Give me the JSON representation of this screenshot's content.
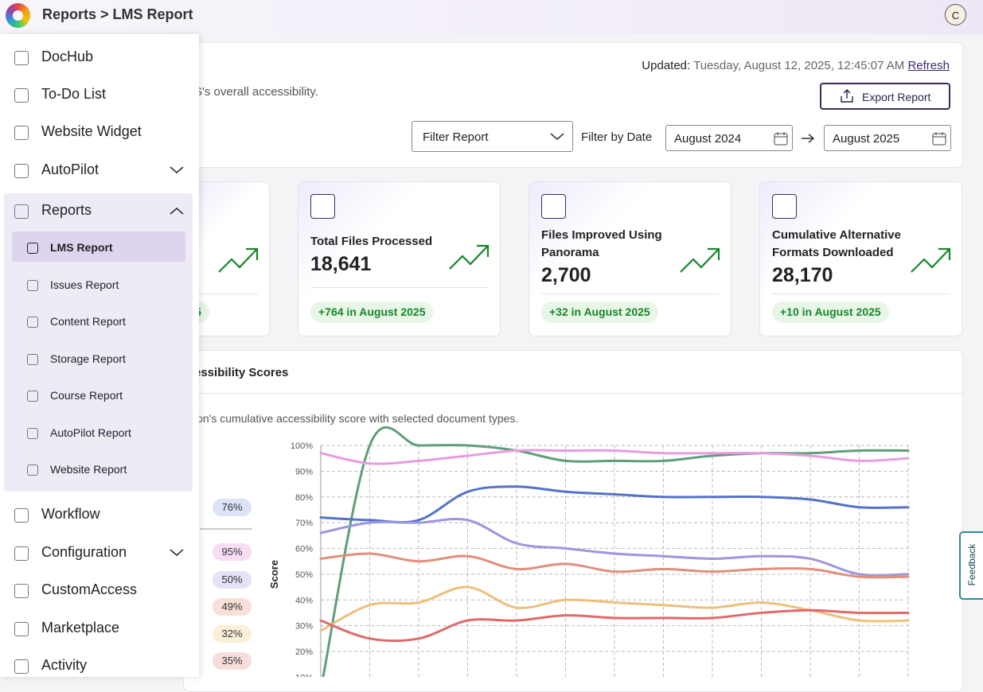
{
  "header": {
    "breadcrumb": "Reports > LMS Report",
    "avatar": "C"
  },
  "sidebar": {
    "items_before": [
      "DocHub",
      "To-Do List",
      "Website Widget",
      "AutoPilot"
    ],
    "reports": {
      "label": "Reports",
      "items": [
        "LMS Report",
        "Issues Report",
        "Content Report",
        "Storage Report",
        "Course Report",
        "AutoPilot Report",
        "Website Report"
      ]
    },
    "items_after": [
      "Workflow",
      "Configuration",
      "CustomAccess",
      "Marketplace",
      "Activity"
    ]
  },
  "toolbar": {
    "updated_label": "Updated:",
    "updated_value": "Tuesday, August 12, 2025, 12:45:07 AM",
    "refresh": "Refresh",
    "subtitle_fragment": "S's overall accessibility.",
    "export": "Export Report",
    "filter": "Filter Report",
    "filter_date": "Filter by Date",
    "date_from": "August 2024",
    "date_to": "August 2025"
  },
  "stats": [
    {
      "delta": "5"
    },
    {
      "title": "Total Files Processed",
      "value": "18,641",
      "delta": "+764 in August 2025"
    },
    {
      "title": "Files Improved Using Panorama",
      "value": "2,700",
      "delta": "+32 in August 2025"
    },
    {
      "title": "Cumulative Alternative Formats Downloaded",
      "value": "28,170",
      "delta": "+10 in August 2025"
    }
  ],
  "chart_panel": {
    "title_fragment": "essibility Scores",
    "description_fragment": "ion's cumulative accessibility score with selected document types.",
    "badges": [
      "76%",
      "95%",
      "50%",
      "49%",
      "32%",
      "35%"
    ]
  },
  "feedback": "Feedback",
  "chart_data": {
    "type": "line",
    "ylabel": "Score",
    "categories": [
      null,
      null,
      null,
      null,
      null,
      null,
      null,
      null,
      null,
      null,
      null,
      null,
      null
    ],
    "series": [
      {
        "color": "#5f9e78",
        "values": [
          5,
          100,
          100,
          100,
          98,
          94,
          94,
          94,
          96,
          97,
          97,
          98,
          98
        ]
      },
      {
        "color": "#5472c9",
        "values": [
          72,
          71,
          71,
          82,
          84,
          82,
          81,
          80,
          80,
          80,
          79,
          76,
          76
        ]
      },
      {
        "color": "#e89be0",
        "values": [
          97,
          93,
          94,
          96,
          98,
          98,
          98,
          97,
          97,
          97,
          96,
          94,
          95
        ]
      },
      {
        "color": "#9c97de",
        "values": [
          66,
          70,
          70,
          71,
          62,
          60,
          58,
          57,
          56,
          57,
          56,
          50,
          50
        ]
      },
      {
        "color": "#e0907a",
        "values": [
          56,
          58,
          55,
          57,
          52,
          54,
          51,
          52,
          51,
          52,
          52,
          49,
          49
        ]
      },
      {
        "color": "#ecc07c",
        "values": [
          28,
          38,
          39,
          45,
          37,
          40,
          39,
          38,
          37,
          39,
          36,
          32,
          32
        ]
      },
      {
        "color": "#e06a6a",
        "values": [
          32,
          25,
          25,
          32,
          32,
          34,
          33,
          33,
          33,
          35,
          36,
          35,
          35
        ]
      }
    ],
    "ylim": [
      0,
      100
    ],
    "yticks": [
      {
        "value": 10,
        "label": "10%"
      },
      {
        "value": 20,
        "label": "20%"
      },
      {
        "value": 30,
        "label": "30%"
      },
      {
        "value": 40,
        "label": "40%"
      },
      {
        "value": 50,
        "label": "50%"
      },
      {
        "value": 60,
        "label": "60%"
      },
      {
        "value": 70,
        "label": "70%"
      },
      {
        "value": 80,
        "label": "80%"
      },
      {
        "value": 90,
        "label": "90%"
      },
      {
        "value": 100,
        "label": "100%"
      }
    ],
    "grid": true
  }
}
